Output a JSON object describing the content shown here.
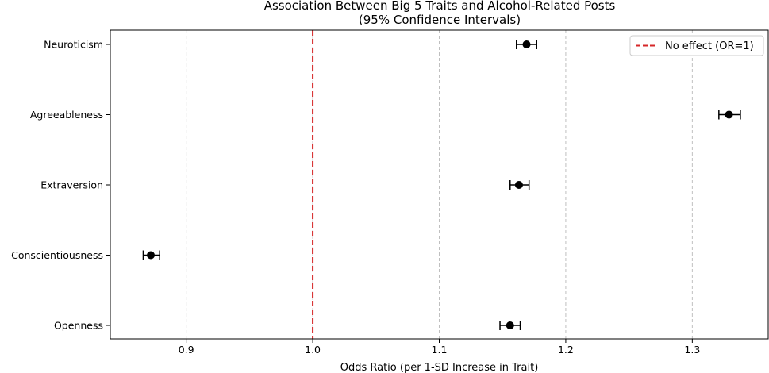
{
  "chart_data": {
    "type": "forest",
    "title_lines": [
      "Association Between Big 5 Traits and Alcohol-Related Posts",
      "(95% Confidence Intervals)"
    ],
    "xlabel": "Odds Ratio (per 1-SD Increase in Trait)",
    "ylabel": "",
    "xlim": [
      0.84,
      1.36
    ],
    "xticks": [
      0.9,
      1.0,
      1.1,
      1.2,
      1.3
    ],
    "xtick_labels": [
      "0.9",
      "1.0",
      "1.1",
      "1.2",
      "1.3"
    ],
    "grid": "x-dashed",
    "categories": [
      "Neuroticism",
      "Agreeableness",
      "Extraversion",
      "Conscientiousness",
      "Openness"
    ],
    "points": [
      {
        "trait": "Neuroticism",
        "or": 1.169,
        "ci_low": 1.161,
        "ci_high": 1.177
      },
      {
        "trait": "Agreeableness",
        "or": 1.329,
        "ci_low": 1.321,
        "ci_high": 1.338
      },
      {
        "trait": "Extraversion",
        "or": 1.163,
        "ci_low": 1.156,
        "ci_high": 1.171
      },
      {
        "trait": "Conscientiousness",
        "or": 0.872,
        "ci_low": 0.866,
        "ci_high": 0.879
      },
      {
        "trait": "Openness",
        "or": 1.156,
        "ci_low": 1.148,
        "ci_high": 1.164
      }
    ],
    "reference_line": {
      "x": 1.0,
      "color": "#d62728",
      "style": "dashed",
      "label": "No effect (OR=1)"
    },
    "legend": {
      "position": "top-right",
      "entries": [
        "No effect (OR=1)"
      ]
    },
    "point_color": "#000000"
  }
}
